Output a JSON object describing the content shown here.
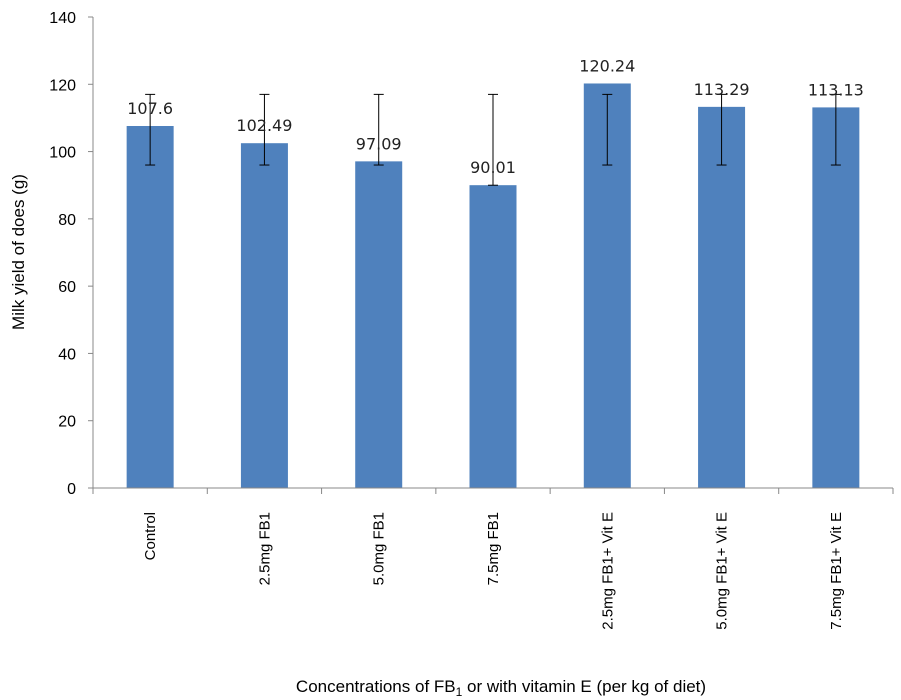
{
  "chart_data": {
    "type": "bar",
    "categories": [
      "Control",
      "2.5mg FB1",
      "5.0mg FB1",
      "7.5mg FB1",
      "2.5mg FB1+ Vit E",
      "5.0mg FB1+ Vit E",
      "7.5mg FB1+ Vit E"
    ],
    "values": [
      107.6,
      102.49,
      97.09,
      90.01,
      120.24,
      113.29,
      113.13
    ],
    "data_labels": [
      "107.6",
      "102.49",
      "97.09",
      "90.01",
      "120.24",
      "113.29",
      "113.13"
    ],
    "error_bars": [
      {
        "low": 96,
        "high": 117
      },
      {
        "low": 96,
        "high": 117
      },
      {
        "low": 96,
        "high": 117
      },
      {
        "low": 90,
        "high": 117
      },
      {
        "low": 96,
        "high": 117
      },
      {
        "low": 96,
        "high": 117
      },
      {
        "low": 96,
        "high": 117
      }
    ],
    "ylabel": "Milk yield of does (g)",
    "xlabel_prefix": "Concentrations of FB",
    "xlabel_subscript": "1",
    "xlabel_suffix": " or with vitamin E (per kg of diet)",
    "ylim": [
      0,
      140
    ],
    "yticks": [
      "0",
      "20",
      "40",
      "60",
      "80",
      "100",
      "120",
      "140"
    ],
    "grid": false,
    "legend": "none",
    "bar_color": "#4f81bd"
  }
}
